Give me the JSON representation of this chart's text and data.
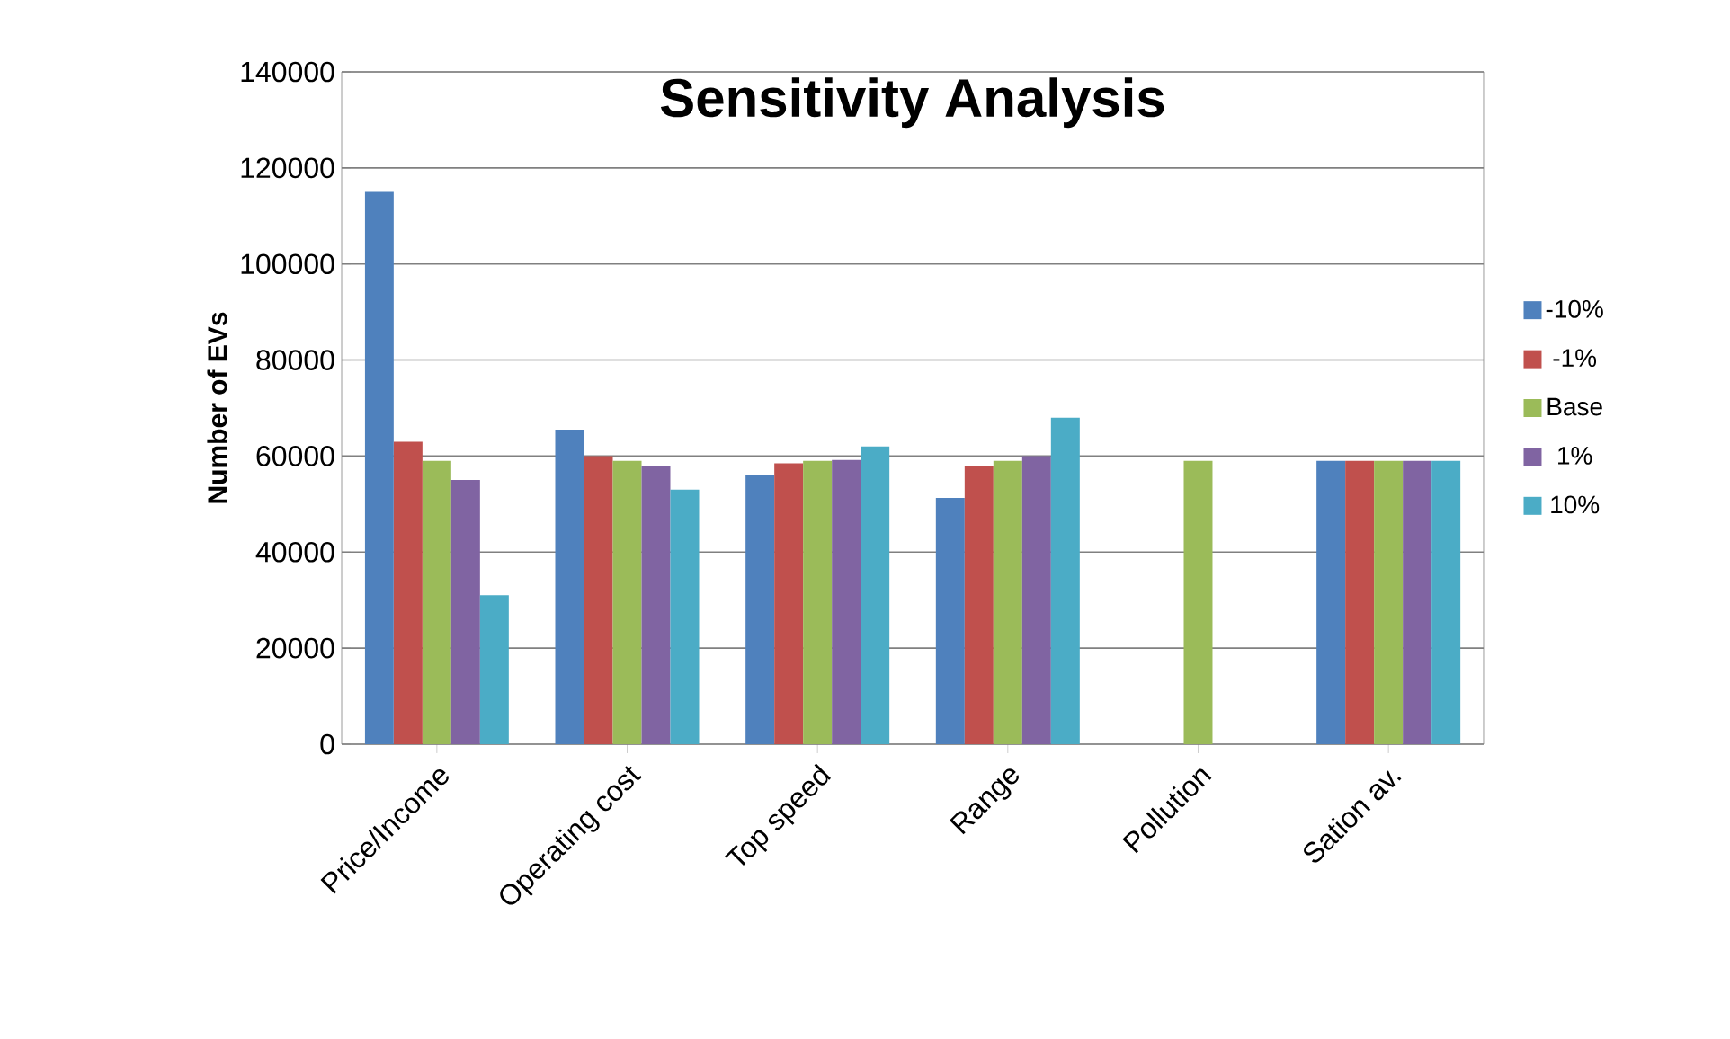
{
  "chart_data": {
    "type": "bar",
    "title": "Sensitivity Analysis",
    "ylabel": "Number of EVs",
    "categories": [
      "Price/Income",
      "Operating cost",
      "Top speed",
      "Range",
      "Pollution",
      "Sation av."
    ],
    "series": [
      {
        "name": "-10%",
        "color": "#4f81bd",
        "values": [
          115000,
          65500,
          56000,
          51300,
          null,
          59000
        ]
      },
      {
        "name": "-1%",
        "color": "#c0504d",
        "values": [
          63000,
          60000,
          58500,
          58000,
          null,
          59000
        ]
      },
      {
        "name": "Base",
        "color": "#9bbb59",
        "values": [
          59000,
          59000,
          59000,
          59000,
          59000,
          59000
        ]
      },
      {
        "name": "1%",
        "color": "#8064a2",
        "values": [
          55000,
          58000,
          59200,
          60000,
          null,
          59000
        ]
      },
      {
        "name": "10%",
        "color": "#4bacc6",
        "values": [
          31000,
          53000,
          62000,
          68000,
          null,
          59000
        ]
      }
    ],
    "ylim": [
      0,
      140000
    ],
    "yticks": [
      0,
      20000,
      40000,
      60000,
      80000,
      100000,
      120000,
      140000
    ],
    "grid": "y",
    "legend": "right"
  }
}
